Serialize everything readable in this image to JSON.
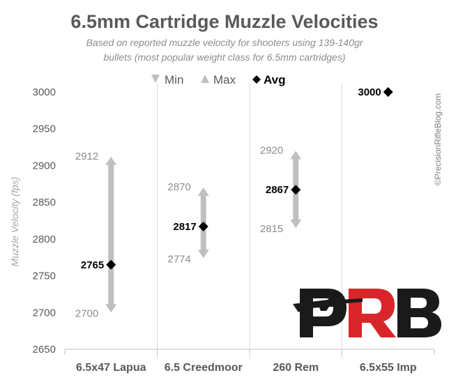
{
  "chart_data": {
    "type": "range",
    "title": "6.5mm Cartridge Muzzle Velocities",
    "subtitle_lines": [
      "Based on reported muzzle velocity for shooters using 139-140gr",
      "bullets (most popular weight class for 6.5mm cartridges)"
    ],
    "ylabel": "Muzzle Velocity (fps)",
    "ylim": [
      2650,
      3000
    ],
    "yticks": [
      2650,
      2700,
      2750,
      2800,
      2850,
      2900,
      2950,
      3000
    ],
    "grid": "vertical",
    "legend": [
      {
        "label": "Min",
        "marker": "down-arrow"
      },
      {
        "label": "Max",
        "marker": "up-arrow"
      },
      {
        "label": "Avg",
        "marker": "diamond"
      }
    ],
    "categories": [
      "6.5x47 Lapua",
      "6.5 Creedmoor",
      "260 Rem",
      "6.5x55 Imp"
    ],
    "min": [
      2700,
      2774,
      2815,
      null
    ],
    "max": [
      2912,
      2870,
      2920,
      null
    ],
    "avg": [
      2765,
      2817,
      2867,
      3000
    ],
    "min_labels": [
      "2700",
      "2774",
      "2815",
      ""
    ],
    "max_labels": [
      "2912",
      "2870",
      "2920",
      ""
    ],
    "avg_labels": [
      "2765",
      "2817",
      "2867",
      "3000"
    ],
    "colors": {
      "range": "#bfbfbf",
      "avg": "#000000",
      "grid": "#d9d9d9",
      "logo_dark": "#1a1a1a",
      "logo_red": "#d9262b"
    }
  },
  "watermark": "©PrecisionRifleBlog.com",
  "logo": {
    "icon": "prb-logo-with-rifle",
    "lettering": "PRB"
  }
}
